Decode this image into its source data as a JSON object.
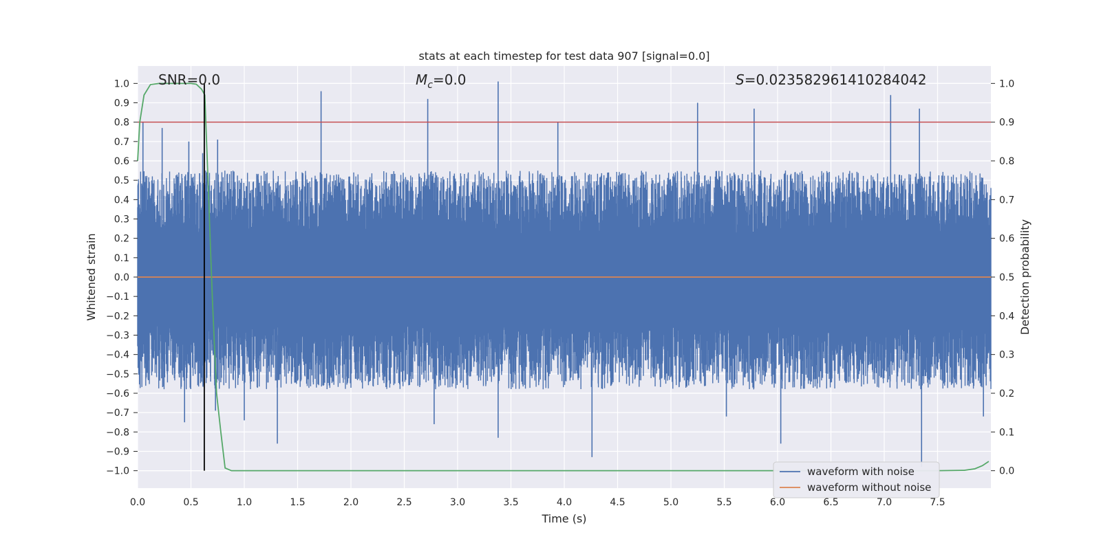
{
  "chart_data": {
    "type": "line",
    "title": "stats at each timestep for test data 907 [signal=0.0]",
    "xlabel": "Time (s)",
    "ylabel": "Whitened strain",
    "y2label": "Detection probability",
    "xlim": [
      0.0,
      8.0
    ],
    "ylim": [
      -1.09,
      1.09
    ],
    "y2lim": [
      -0.045,
      1.045
    ],
    "x_ticks": [
      0.0,
      0.5,
      1.0,
      1.5,
      2.0,
      2.5,
      3.0,
      3.5,
      4.0,
      4.5,
      5.0,
      5.5,
      6.0,
      6.5,
      7.0,
      7.5
    ],
    "x_tick_labels": [
      "0.0",
      "0.5",
      "1.0",
      "1.5",
      "2.0",
      "2.5",
      "3.0",
      "3.5",
      "4.0",
      "4.5",
      "5.0",
      "5.5",
      "6.0",
      "6.5",
      "7.0",
      "7.5"
    ],
    "y_ticks": [
      1.0,
      0.9,
      0.8,
      0.7,
      0.6,
      0.5,
      0.4,
      0.3,
      0.2,
      0.1,
      0.0,
      -0.1,
      -0.2,
      -0.3,
      -0.4,
      -0.5,
      -0.6,
      -0.7,
      -0.8,
      -0.9,
      -1.0
    ],
    "y_tick_labels": [
      "1.0",
      "0.9",
      "0.8",
      "0.7",
      "0.6",
      "0.5",
      "0.4",
      "0.3",
      "0.2",
      "0.1",
      "0.0",
      "−0.1",
      "−0.2",
      "−0.3",
      "−0.4",
      "−0.5",
      "−0.6",
      "−0.7",
      "−0.8",
      "−0.9",
      "−1.0"
    ],
    "y2_ticks": [
      1.0,
      0.9,
      0.8,
      0.7,
      0.6,
      0.5,
      0.4,
      0.3,
      0.2,
      0.1,
      0.0
    ],
    "y2_tick_labels": [
      "1.0",
      "0.9",
      "0.8",
      "0.7",
      "0.6",
      "0.5",
      "0.4",
      "0.3",
      "0.2",
      "0.1",
      "0.0"
    ],
    "annotations": {
      "snr": "SNR=0.0",
      "mc_symbol": "M",
      "mc_sub": "c",
      "mc_value": "=0.0",
      "s_symbol": "S",
      "s_value": "=0.023582961410284042"
    },
    "legend": {
      "location": "lower-right",
      "entries": [
        "waveform with noise",
        "waveform without noise"
      ]
    },
    "threshold_line": {
      "y2_value": 0.9,
      "color": "#c44e52"
    },
    "marker_line": {
      "x_value": 0.625,
      "color": "#000000"
    },
    "series": [
      {
        "name": "waveform with noise",
        "axis": "left",
        "color": "#4c72b0",
        "style": "dense noise envelope",
        "x_range": [
          0.0,
          8.0
        ],
        "typical_upper_range": [
          0.22,
          0.55
        ],
        "typical_lower_range": [
          -0.58,
          -0.22
        ],
        "peaks": [
          {
            "x": 0.05,
            "y": 0.8
          },
          {
            "x": 0.23,
            "y": 0.77
          },
          {
            "x": 0.48,
            "y": 0.7
          },
          {
            "x": 0.61,
            "y": 0.64
          },
          {
            "x": 0.75,
            "y": 0.71
          },
          {
            "x": 1.72,
            "y": 0.96
          },
          {
            "x": 2.72,
            "y": 0.92
          },
          {
            "x": 3.38,
            "y": 1.01
          },
          {
            "x": 3.94,
            "y": 0.8
          },
          {
            "x": 5.25,
            "y": 0.9
          },
          {
            "x": 5.78,
            "y": 0.87
          },
          {
            "x": 7.06,
            "y": 0.94
          },
          {
            "x": 7.33,
            "y": 0.87
          },
          {
            "x": 0.44,
            "y": -0.75
          },
          {
            "x": 0.73,
            "y": -0.69
          },
          {
            "x": 1.0,
            "y": -0.74
          },
          {
            "x": 1.31,
            "y": -0.86
          },
          {
            "x": 2.78,
            "y": -0.76
          },
          {
            "x": 3.38,
            "y": -0.83
          },
          {
            "x": 4.26,
            "y": -0.93
          },
          {
            "x": 5.52,
            "y": -0.72
          },
          {
            "x": 6.03,
            "y": -0.86
          },
          {
            "x": 7.35,
            "y": -0.98
          },
          {
            "x": 7.93,
            "y": -0.72
          }
        ]
      },
      {
        "name": "waveform without noise",
        "axis": "left",
        "color": "#dd8452",
        "x": [
          0.0,
          8.0
        ],
        "y": [
          0.0,
          0.0
        ]
      },
      {
        "name": "Detection probability",
        "axis": "right",
        "color": "#55a868",
        "x": [
          0.0,
          0.02,
          0.06,
          0.12,
          0.2,
          0.3,
          0.4,
          0.5,
          0.55,
          0.6,
          0.63,
          0.66,
          0.7,
          0.74,
          0.78,
          0.82,
          0.88,
          1.0,
          2.0,
          3.0,
          4.0,
          5.0,
          6.0,
          7.0,
          7.5,
          7.75,
          7.85,
          7.92,
          7.98
        ],
        "y": [
          0.8,
          0.9,
          0.97,
          0.997,
          1.0,
          1.0,
          1.0,
          1.0,
          0.998,
          0.985,
          0.97,
          0.75,
          0.45,
          0.2,
          0.1,
          0.007,
          0.0,
          0.0,
          0.0,
          0.0,
          0.0,
          0.0,
          0.0,
          0.0,
          0.0,
          0.001,
          0.005,
          0.013,
          0.024
        ]
      }
    ]
  }
}
